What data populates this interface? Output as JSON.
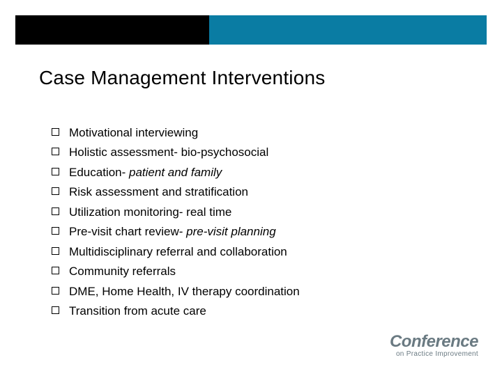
{
  "colors": {
    "top_bar_dark": "#000000",
    "top_bar_teal": "#0a7ca3",
    "background": "#ffffff",
    "text": "#000000",
    "footer_text": "#6a7a82"
  },
  "title": "Case Management Interventions",
  "bullets": [
    {
      "prefix": "Motivational interviewing",
      "italic": ""
    },
    {
      "prefix": "Holistic assessment- bio-psychosocial",
      "italic": ""
    },
    {
      "prefix": "Education- ",
      "italic": "patient and family"
    },
    {
      "prefix": "Risk assessment and stratification",
      "italic": ""
    },
    {
      "prefix": "Utilization monitoring- real time",
      "italic": ""
    },
    {
      "prefix": "Pre-visit chart review- ",
      "italic": "pre-visit planning"
    },
    {
      "prefix": "Multidisciplinary referral and collaboration",
      "italic": ""
    },
    {
      "prefix": "Community referrals",
      "italic": ""
    },
    {
      "prefix": "DME, Home Health, IV therapy coordination",
      "italic": ""
    },
    {
      "prefix": "Transition from acute care",
      "italic": ""
    }
  ],
  "footer": {
    "main": "Conference",
    "sub": "on Practice Improvement"
  }
}
